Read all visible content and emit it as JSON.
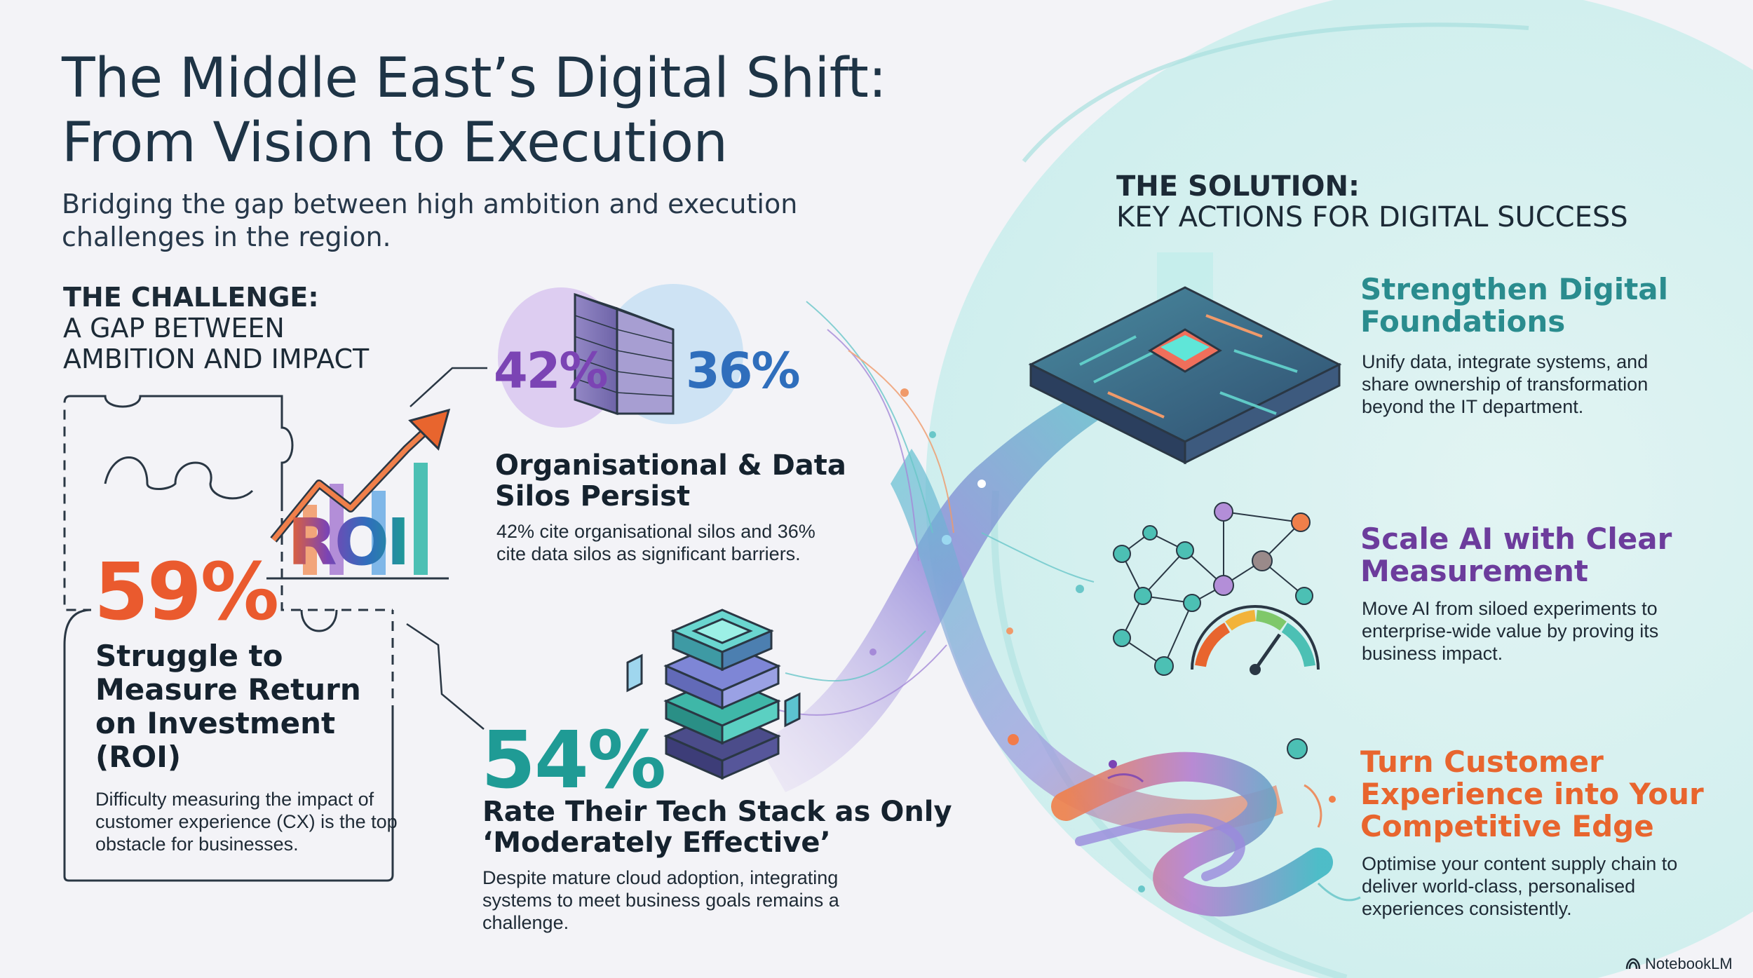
{
  "header": {
    "title_line1": "The Middle East’s Digital Shift:",
    "title_line2": "From Vision to Execution",
    "subtitle": "Bridging the gap between high ambition and execution challenges in the region."
  },
  "challenge": {
    "heading_bold": "THE CHALLENGE:",
    "heading_line2": "A GAP BETWEEN",
    "heading_line3": "AMBITION AND IMPACT",
    "roi_label": "ROI",
    "stat_roi": {
      "value": "59%",
      "title": "Struggle to Measure Return on Investment (ROI)",
      "body": "Difficulty measuring the impact of customer experience (CX) is the top obstacle for businesses."
    },
    "stat_silos": {
      "value_a": "42%",
      "value_b": "36%",
      "title": "Organisational & Data Silos Persist",
      "body": "42% cite organisational silos and 36% cite data silos as significant barriers."
    },
    "stat_stack": {
      "value": "54%",
      "title": "Rate Their Tech Stack as Only ‘Moderately Effective’",
      "body": "Despite mature cloud adoption, integrating systems to meet business goals remains a challenge."
    }
  },
  "solution": {
    "heading_bold": "THE SOLUTION:",
    "heading_line2": "KEY ACTIONS FOR DIGITAL SUCCESS",
    "items": [
      {
        "title": "Strengthen Digital Foundations",
        "body": "Unify data, integrate systems, and share ownership of transformation beyond the IT department.",
        "color": "#2a8c8e",
        "icon": "circuit-chip-icon"
      },
      {
        "title": "Scale AI with Clear Measurement",
        "body": "Move AI from siloed experiments to enterprise-wide value by proving its business impact.",
        "color": "#6c3c9c",
        "icon": "network-gauge-icon"
      },
      {
        "title": "Turn Customer Experience into Your Competitive Edge",
        "body": "Optimise your content supply chain to deliver world-class, personalised experiences consistently.",
        "color": "#e8652e",
        "icon": "flowing-ribbon-icon"
      }
    ]
  },
  "brand": {
    "name": "NotebookLM",
    "icon": "notebooklm-logo-icon"
  },
  "colors": {
    "orange": "#ea5a2e",
    "purple": "#7b44b4",
    "blue": "#2f6ebc",
    "teal": "#1f9b95"
  }
}
